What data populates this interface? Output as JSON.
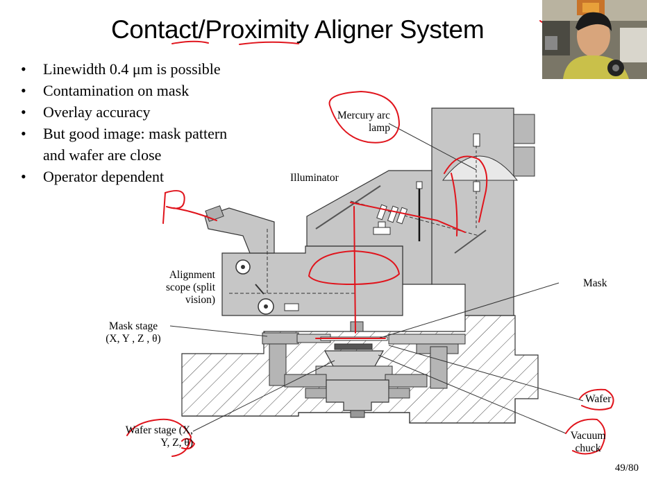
{
  "slide": {
    "title": "Contact/Proximity Aligner System",
    "bullets": [
      {
        "line1": "Linewidth 0.4 μm is possible",
        "line2": ""
      },
      {
        "line1": "Contamination on mask",
        "line2": ""
      },
      {
        "line1": "Overlay accuracy",
        "line2": ""
      },
      {
        "line1": "But good image: mask pattern",
        "line2": "and wafer are close"
      },
      {
        "line1": "Operator dependent",
        "line2": ""
      }
    ],
    "bullet_char": "•",
    "page_number": "49/80"
  },
  "diagram": {
    "labels": {
      "mercury_line1": "Mercury arc",
      "mercury_line2": "lamp",
      "illuminator": "Illuminator",
      "mask": "Mask",
      "alignment_line1": "Alignment",
      "alignment_line2": "scope (split",
      "alignment_line3": "vision)",
      "mask_stage_line1": "Mask stage",
      "mask_stage_line2": "(X, Y , Z , θ)",
      "wafer": "Wafer",
      "wafer_stage_line1": "Wafer stage (X,",
      "wafer_stage_line2": "Y, Z, θ)",
      "vacuum_line1": "Vacuum",
      "vacuum_line2": "chuck"
    },
    "colors": {
      "machine_fill": "#c6c6c6",
      "machine_dark": "#9a9a9a",
      "outline": "#333333",
      "annotation": "#e0141c"
    }
  },
  "webcam": {
    "icon": "presenter-video-feed"
  }
}
